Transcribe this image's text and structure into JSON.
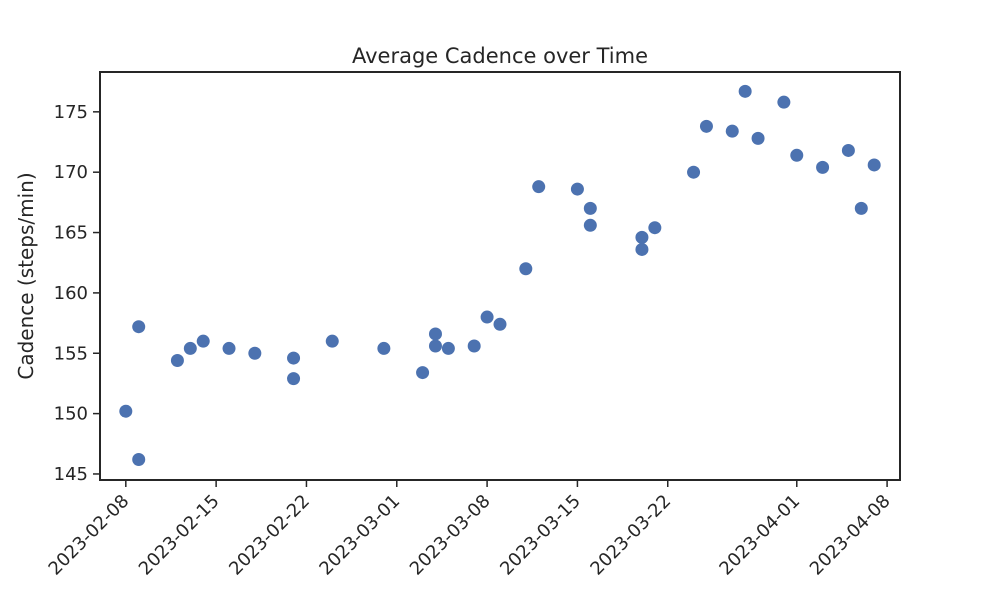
{
  "chart_data": {
    "type": "scatter",
    "title": "Average Cadence over Time",
    "xlabel": "",
    "ylabel": "Cadence (steps/min)",
    "x_axis_type": "date",
    "xlim": [
      "2023-02-06",
      "2023-04-09"
    ],
    "ylim": [
      144.5,
      178.3
    ],
    "x_ticks": [
      "2023-02-08",
      "2023-02-15",
      "2023-02-22",
      "2023-03-01",
      "2023-03-08",
      "2023-03-15",
      "2023-03-22",
      "2023-04-01",
      "2023-04-08"
    ],
    "y_ticks": [
      145,
      150,
      155,
      160,
      165,
      170,
      175
    ],
    "grid": false,
    "marker_color": "#4c72b0",
    "series": [
      {
        "points": [
          {
            "x": "2023-02-08",
            "y": 150.2
          },
          {
            "x": "2023-02-09",
            "y": 157.2
          },
          {
            "x": "2023-02-09",
            "y": 146.2
          },
          {
            "x": "2023-02-12",
            "y": 154.4
          },
          {
            "x": "2023-02-13",
            "y": 155.4
          },
          {
            "x": "2023-02-14",
            "y": 156.0
          },
          {
            "x": "2023-02-16",
            "y": 155.4
          },
          {
            "x": "2023-02-18",
            "y": 155.0
          },
          {
            "x": "2023-02-21",
            "y": 152.9
          },
          {
            "x": "2023-02-21",
            "y": 154.6
          },
          {
            "x": "2023-02-24",
            "y": 156.0
          },
          {
            "x": "2023-02-28",
            "y": 155.4
          },
          {
            "x": "2023-03-03",
            "y": 153.4
          },
          {
            "x": "2023-03-04",
            "y": 156.6
          },
          {
            "x": "2023-03-04",
            "y": 155.6
          },
          {
            "x": "2023-03-05",
            "y": 155.4
          },
          {
            "x": "2023-03-07",
            "y": 155.6
          },
          {
            "x": "2023-03-08",
            "y": 158.0
          },
          {
            "x": "2023-03-09",
            "y": 157.4
          },
          {
            "x": "2023-03-11",
            "y": 162.0
          },
          {
            "x": "2023-03-12",
            "y": 168.8
          },
          {
            "x": "2023-03-15",
            "y": 168.6
          },
          {
            "x": "2023-03-16",
            "y": 165.6
          },
          {
            "x": "2023-03-16",
            "y": 167.0
          },
          {
            "x": "2023-03-20",
            "y": 164.6
          },
          {
            "x": "2023-03-20",
            "y": 163.6
          },
          {
            "x": "2023-03-21",
            "y": 165.4
          },
          {
            "x": "2023-03-24",
            "y": 170.0
          },
          {
            "x": "2023-03-25",
            "y": 173.8
          },
          {
            "x": "2023-03-27",
            "y": 173.4
          },
          {
            "x": "2023-03-28",
            "y": 176.7
          },
          {
            "x": "2023-03-29",
            "y": 172.8
          },
          {
            "x": "2023-03-31",
            "y": 175.8
          },
          {
            "x": "2023-04-01",
            "y": 171.4
          },
          {
            "x": "2023-04-03",
            "y": 170.4
          },
          {
            "x": "2023-04-05",
            "y": 171.8
          },
          {
            "x": "2023-04-06",
            "y": 167.0
          },
          {
            "x": "2023-04-07",
            "y": 170.6
          }
        ]
      }
    ]
  }
}
